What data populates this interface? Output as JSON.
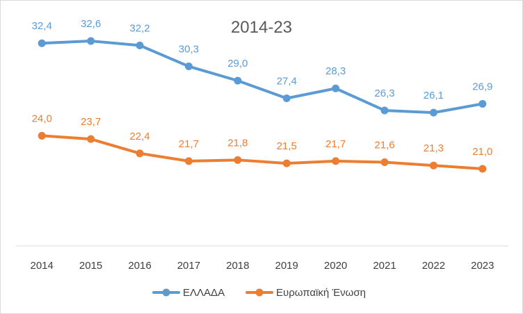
{
  "chart_data": {
    "type": "line",
    "title": "2014-23",
    "categories": [
      "2014",
      "2015",
      "2016",
      "2017",
      "2018",
      "2019",
      "2020",
      "2021",
      "2022",
      "2023"
    ],
    "series": [
      {
        "name": "ΕΛΛΑΔΑ",
        "color": "#5b9bd5",
        "values": [
          32.4,
          32.6,
          32.2,
          30.3,
          29.0,
          27.4,
          28.3,
          26.3,
          26.1,
          26.9
        ],
        "labels": [
          "32,4",
          "32,6",
          "32,2",
          "30,3",
          "29,0",
          "27,4",
          "28,3",
          "26,3",
          "26,1",
          "26,9"
        ]
      },
      {
        "name": "Ευρωπαϊκή Ένωση",
        "color": "#ed7d31",
        "values": [
          24.0,
          23.7,
          22.4,
          21.7,
          21.8,
          21.5,
          21.7,
          21.6,
          21.3,
          21.0
        ],
        "labels": [
          "24,0",
          "23,7",
          "22,4",
          "21,7",
          "21,8",
          "21,5",
          "21,7",
          "21,6",
          "21,3",
          "21,0"
        ]
      }
    ],
    "ylim": [
      14,
      35
    ],
    "grid": false,
    "legend_position": "bottom"
  }
}
